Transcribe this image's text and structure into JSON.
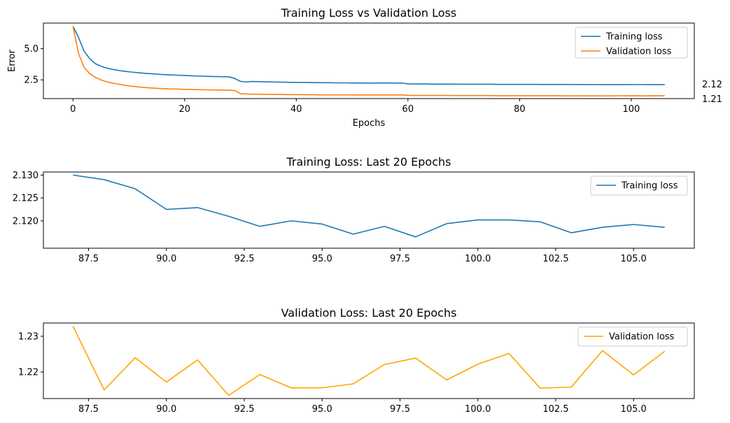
{
  "chart_data": [
    {
      "type": "line",
      "title": "Training Loss vs Validation Loss",
      "xlabel": "Epochs",
      "ylabel": "Error",
      "xlim": [
        -5.3,
        111.3
      ],
      "ylim": [
        1.0,
        7.05
      ],
      "xticks": [
        0,
        20,
        40,
        60,
        80,
        100
      ],
      "xtick_labels": [
        "0",
        "20",
        "40",
        "60",
        "80",
        "100"
      ],
      "yticks": [
        2.5,
        5.0
      ],
      "ytick_labels": [
        "2.5",
        "5.0"
      ],
      "legend": "top-right",
      "grid": false,
      "annotations": [
        "2.12",
        "1.21"
      ],
      "series": [
        {
          "name": "Training loss",
          "color": "#1f77b4",
          "x": [
            0,
            1,
            2,
            3,
            4,
            5,
            6,
            7,
            8,
            9,
            10,
            11,
            12,
            13,
            14,
            15,
            16,
            17,
            18,
            19,
            20,
            21,
            22,
            23,
            24,
            25,
            26,
            27,
            28,
            29,
            30,
            31,
            32,
            33,
            34,
            35,
            36,
            37,
            38,
            39,
            40,
            41,
            42,
            43,
            44,
            45,
            46,
            47,
            48,
            49,
            50,
            51,
            52,
            53,
            54,
            55,
            56,
            57,
            58,
            59,
            60,
            61,
            62,
            63,
            64,
            65,
            66,
            67,
            68,
            69,
            70,
            71,
            72,
            73,
            74,
            75,
            76,
            77,
            78,
            79,
            80,
            81,
            82,
            83,
            84,
            85,
            86,
            87,
            88,
            89,
            90,
            91,
            92,
            93,
            94,
            95,
            96,
            97,
            98,
            99,
            100,
            101,
            102,
            103,
            104,
            105,
            106
          ],
          "y": [
            6.8,
            5.9,
            4.8,
            4.2,
            3.8,
            3.6,
            3.45,
            3.35,
            3.27,
            3.2,
            3.15,
            3.1,
            3.06,
            3.02,
            2.99,
            2.96,
            2.93,
            2.91,
            2.89,
            2.87,
            2.85,
            2.83,
            2.81,
            2.8,
            2.78,
            2.77,
            2.76,
            2.75,
            2.74,
            2.6,
            2.38,
            2.33,
            2.37,
            2.36,
            2.35,
            2.34,
            2.33,
            2.32,
            2.31,
            2.3,
            2.3,
            2.29,
            2.29,
            2.28,
            2.28,
            2.27,
            2.27,
            2.26,
            2.26,
            2.26,
            2.25,
            2.25,
            2.25,
            2.24,
            2.25,
            2.25,
            2.25,
            2.25,
            2.24,
            2.24,
            2.18,
            2.17,
            2.17,
            2.17,
            2.16,
            2.16,
            2.16,
            2.16,
            2.16,
            2.15,
            2.15,
            2.15,
            2.15,
            2.15,
            2.15,
            2.15,
            2.14,
            2.14,
            2.14,
            2.14,
            2.14,
            2.14,
            2.14,
            2.14,
            2.13,
            2.13,
            2.13,
            2.13,
            2.129,
            2.127,
            2.1225,
            2.1229,
            2.121,
            2.1188,
            2.12,
            2.1193,
            2.1171,
            2.1188,
            2.1165,
            2.1194,
            2.1202,
            2.1202,
            2.1198,
            2.1174,
            2.1186,
            2.1192,
            2.1186
          ]
        },
        {
          "name": "Validation loss",
          "color": "#ff7f0e",
          "x": [
            0,
            1,
            2,
            3,
            4,
            5,
            6,
            7,
            8,
            9,
            10,
            11,
            12,
            13,
            14,
            15,
            16,
            17,
            18,
            19,
            20,
            21,
            22,
            23,
            24,
            25,
            26,
            27,
            28,
            29,
            30,
            31,
            32,
            33,
            34,
            35,
            36,
            37,
            38,
            39,
            40,
            41,
            42,
            43,
            44,
            45,
            46,
            47,
            48,
            49,
            50,
            51,
            52,
            53,
            54,
            55,
            56,
            57,
            58,
            59,
            60,
            61,
            62,
            63,
            64,
            65,
            66,
            67,
            68,
            69,
            70,
            71,
            72,
            73,
            74,
            75,
            76,
            77,
            78,
            79,
            80,
            81,
            82,
            83,
            84,
            85,
            86,
            87,
            88,
            89,
            90,
            91,
            92,
            93,
            94,
            95,
            96,
            97,
            98,
            99,
            100,
            101,
            102,
            103,
            104,
            105,
            106
          ],
          "y": [
            6.8,
            4.6,
            3.5,
            3.0,
            2.7,
            2.5,
            2.35,
            2.25,
            2.17,
            2.08,
            2.02,
            1.97,
            1.92,
            1.88,
            1.85,
            1.82,
            1.8,
            1.78,
            1.77,
            1.76,
            1.74,
            1.73,
            1.72,
            1.71,
            1.7,
            1.69,
            1.68,
            1.68,
            1.67,
            1.65,
            1.39,
            1.37,
            1.36,
            1.35,
            1.34,
            1.34,
            1.33,
            1.33,
            1.32,
            1.32,
            1.32,
            1.31,
            1.31,
            1.31,
            1.3,
            1.3,
            1.3,
            1.3,
            1.3,
            1.3,
            1.3,
            1.29,
            1.29,
            1.29,
            1.29,
            1.29,
            1.29,
            1.29,
            1.29,
            1.29,
            1.26,
            1.25,
            1.25,
            1.25,
            1.25,
            1.25,
            1.25,
            1.25,
            1.24,
            1.24,
            1.24,
            1.24,
            1.24,
            1.24,
            1.24,
            1.24,
            1.23,
            1.23,
            1.23,
            1.23,
            1.23,
            1.23,
            1.23,
            1.23,
            1.23,
            1.23,
            1.23,
            1.2328,
            1.215,
            1.224,
            1.2172,
            1.2234,
            1.2135,
            1.2193,
            1.2156,
            1.2156,
            1.2167,
            1.2221,
            1.2239,
            1.2178,
            1.2222,
            1.2252,
            1.2155,
            1.2158,
            1.226,
            1.2192,
            1.2258
          ]
        }
      ]
    },
    {
      "type": "line",
      "title": "Training Loss: Last 20 Epochs",
      "xlabel": "",
      "ylabel": "",
      "xlim": [
        86.05,
        106.95
      ],
      "ylim": [
        2.11403,
        2.13067
      ],
      "xticks": [
        87.5,
        90.0,
        92.5,
        95.0,
        97.5,
        100.0,
        102.5,
        105.0
      ],
      "xtick_labels": [
        "87.5",
        "90.0",
        "92.5",
        "95.0",
        "97.5",
        "100.0",
        "102.5",
        "105.0"
      ],
      "yticks": [
        2.12,
        2.125,
        2.13
      ],
      "ytick_labels": [
        "2.120",
        "2.125",
        "2.130"
      ],
      "legend": "top-right",
      "grid": false,
      "series": [
        {
          "name": "Training loss",
          "color": "#1f77b4",
          "x": [
            87,
            88,
            89,
            90,
            91,
            92,
            93,
            94,
            95,
            96,
            97,
            98,
            99,
            100,
            101,
            102,
            103,
            104,
            105,
            106
          ],
          "y": [
            2.13,
            2.129,
            2.127,
            2.1225,
            2.1229,
            2.121,
            2.1188,
            2.12,
            2.1193,
            2.1171,
            2.1188,
            2.1165,
            2.1194,
            2.1202,
            2.1202,
            2.1198,
            2.1174,
            2.1186,
            2.1192,
            2.1186
          ]
        }
      ]
    },
    {
      "type": "line",
      "title": "Validation Loss: Last 20 Epochs",
      "xlabel": "",
      "ylabel": "",
      "xlim": [
        86.05,
        106.95
      ],
      "ylim": [
        1.2126,
        1.2337
      ],
      "xticks": [
        87.5,
        90.0,
        92.5,
        95.0,
        97.5,
        100.0,
        102.5,
        105.0
      ],
      "xtick_labels": [
        "87.5",
        "90.0",
        "92.5",
        "95.0",
        "97.5",
        "100.0",
        "102.5",
        "105.0"
      ],
      "yticks": [
        1.22,
        1.23
      ],
      "ytick_labels": [
        "1.22",
        "1.23"
      ],
      "legend": "top-right",
      "grid": false,
      "series": [
        {
          "name": "Validation loss",
          "color": "#ffa500",
          "x": [
            87,
            88,
            89,
            90,
            91,
            92,
            93,
            94,
            95,
            96,
            97,
            98,
            99,
            100,
            101,
            102,
            103,
            104,
            105,
            106
          ],
          "y": [
            1.2328,
            1.215,
            1.224,
            1.2172,
            1.2234,
            1.2135,
            1.2193,
            1.2156,
            1.2156,
            1.2167,
            1.2221,
            1.2239,
            1.2178,
            1.2222,
            1.2252,
            1.2155,
            1.2158,
            1.226,
            1.2192,
            1.2258
          ]
        }
      ]
    }
  ]
}
